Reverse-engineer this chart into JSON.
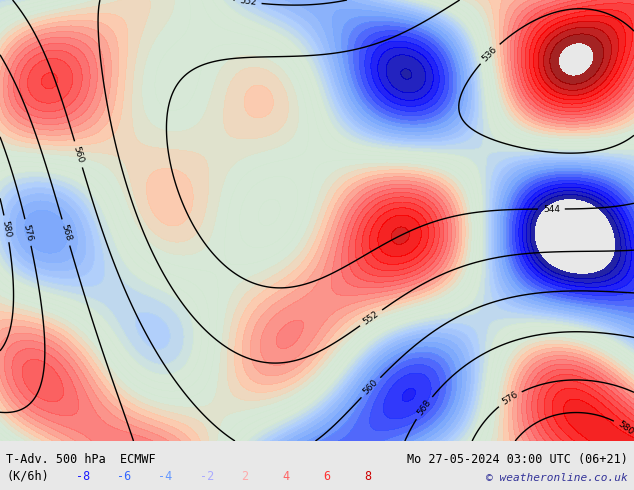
{
  "title_left": "T-Adv. 500 hPa  ECMWF",
  "title_right": "Mo 27-05-2024 03:00 UTC (06+21)",
  "subtitle_left": "(K/6h)",
  "copyright": "© weatheronline.co.uk",
  "legend_values": [
    -8,
    -6,
    -4,
    -2,
    2,
    4,
    6,
    8
  ],
  "legend_colors": [
    "#0000cc",
    "#3333ff",
    "#6666ff",
    "#9999ff",
    "#ff9999",
    "#ff6666",
    "#ff3333",
    "#cc0000"
  ],
  "bg_color": "#e8e8e8",
  "map_bg": "#d4e8d4",
  "bottom_bar_color": "#d8d8d8",
  "figsize": [
    6.34,
    4.9
  ],
  "dpi": 100,
  "bottom_text_color": "#000000",
  "legend_neg_colors": [
    "#1a1aff",
    "#3366ff",
    "#6699ff",
    "#aaaaff"
  ],
  "legend_pos_colors": [
    "#ffaaaa",
    "#ff6666",
    "#ff3333",
    "#cc0000"
  ]
}
